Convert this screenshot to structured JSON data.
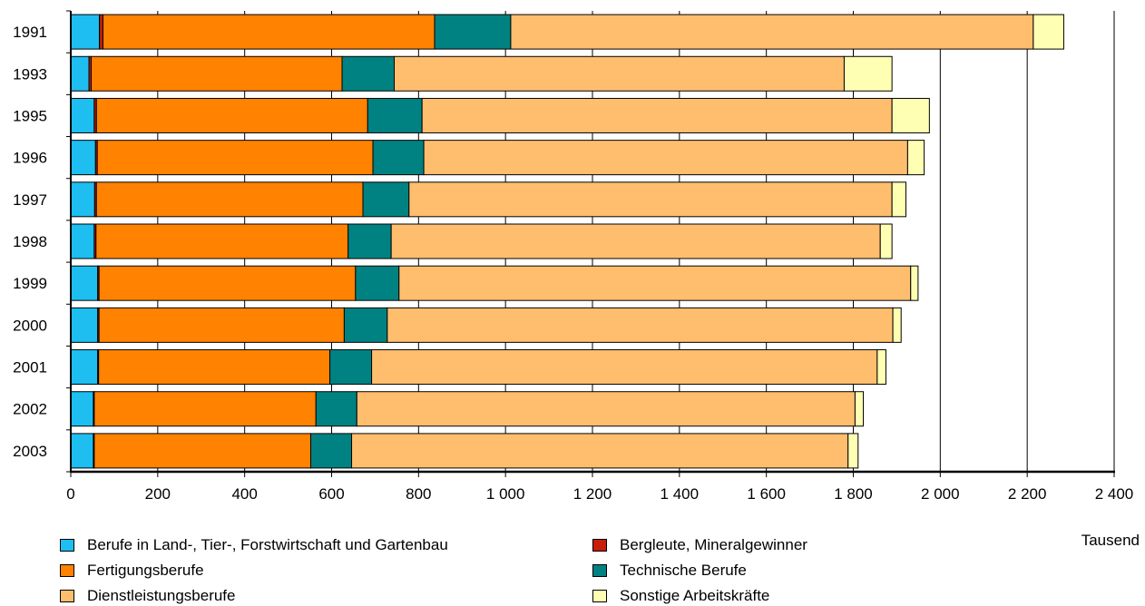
{
  "chart_data": {
    "type": "bar",
    "orientation": "horizontal",
    "stacked": true,
    "categories": [
      "1991",
      "1993",
      "1995",
      "1996",
      "1997",
      "1998",
      "1999",
      "2000",
      "2001",
      "2002",
      "2003"
    ],
    "series": [
      {
        "name": "Berufe in Land-, Tier-, Forstwirtschaft und Gartenbau",
        "color": "#1EBEF0",
        "values": [
          66,
          42,
          54,
          57,
          55,
          54,
          62,
          62,
          62,
          52,
          52
        ]
      },
      {
        "name": "Bergleute, Mineralgewinner",
        "color": "#C81E0A",
        "values": [
          8,
          5,
          5,
          4,
          4,
          4,
          3,
          3,
          2,
          2,
          2
        ]
      },
      {
        "name": "Fertigungsberufe",
        "color": "#FF8200",
        "values": [
          763,
          577,
          624,
          634,
          613,
          580,
          590,
          564,
          532,
          510,
          498
        ]
      },
      {
        "name": "Technische Berufe",
        "color": "#008282",
        "values": [
          175,
          120,
          125,
          117,
          106,
          99,
          100,
          99,
          96,
          94,
          94
        ]
      },
      {
        "name": "Dienstleistungsberufe",
        "color": "#FFBE6E",
        "values": [
          1202,
          1035,
          1081,
          1113,
          1111,
          1125,
          1177,
          1163,
          1163,
          1146,
          1142
        ]
      },
      {
        "name": "Sonstige Arbeitskräfte",
        "color": "#FFFFB4",
        "values": [
          70,
          110,
          86,
          38,
          32,
          27,
          17,
          19,
          20,
          19,
          23
        ]
      }
    ],
    "xlim": [
      0,
      2400
    ],
    "xticks": [
      0,
      200,
      400,
      600,
      800,
      1000,
      1200,
      1400,
      1600,
      1800,
      2000,
      2200,
      2400
    ],
    "xtick_labels": [
      "0",
      "200",
      "400",
      "600",
      "800",
      "1 000",
      "1 200",
      "1 400",
      "1 600",
      "1 800",
      "2 000",
      "2 200",
      "2 400"
    ],
    "unit_label": "Tausend",
    "grid": "vertical",
    "legend_position": "bottom"
  }
}
